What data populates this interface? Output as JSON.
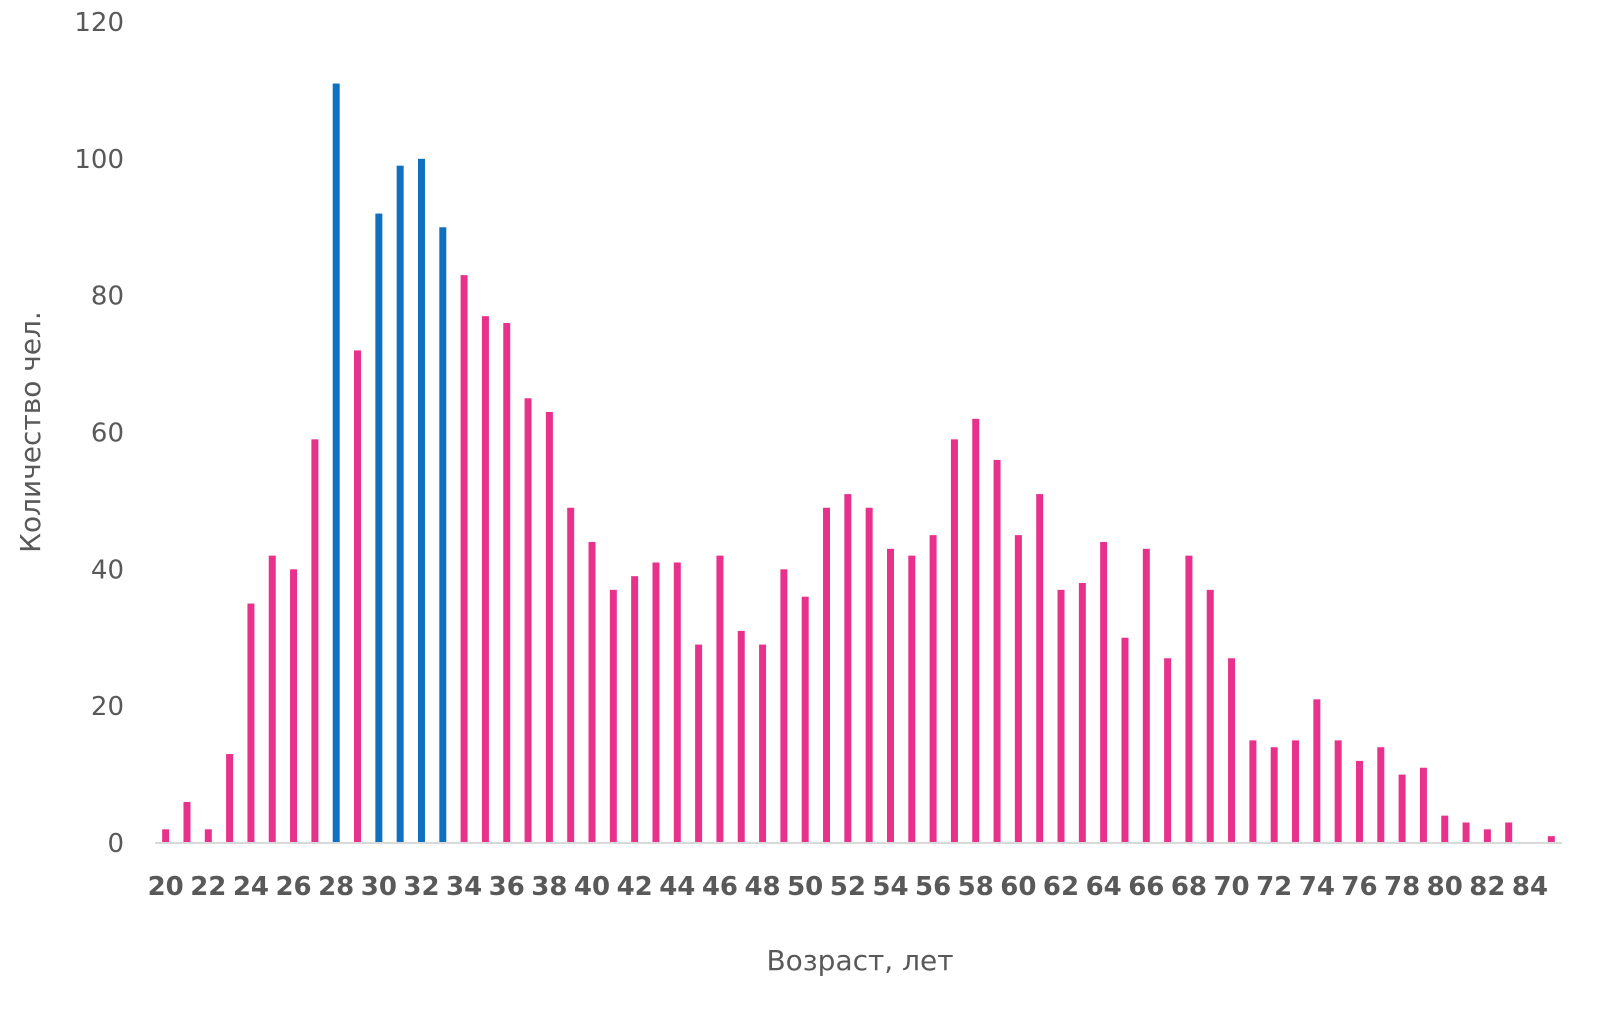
{
  "chart_data": {
    "type": "bar",
    "title": "",
    "xlabel": "Возраст, лет",
    "ylabel": "Количество чел.",
    "ylim": [
      0,
      120
    ],
    "y_ticks": [
      "0",
      "20",
      "40",
      "60",
      "80",
      "100",
      "120"
    ],
    "x_tick_labels": [
      "20",
      "22",
      "24",
      "26",
      "28",
      "30",
      "32",
      "34",
      "36",
      "38",
      "40",
      "42",
      "44",
      "46",
      "48",
      "50",
      "52",
      "54",
      "56",
      "58",
      "60",
      "62",
      "64",
      "66",
      "68",
      "70",
      "72",
      "74",
      "76",
      "78",
      "80",
      "82",
      "84"
    ],
    "grid": false,
    "legend": "none",
    "colors": {
      "default": "#e8318a",
      "highlight": "#1070c0",
      "axis": "#d9d9d9"
    },
    "highlighted_ages": [
      28,
      30,
      31,
      32,
      33
    ],
    "categories": [
      20,
      21,
      22,
      23,
      24,
      25,
      26,
      27,
      28,
      29,
      30,
      31,
      32,
      33,
      34,
      35,
      36,
      37,
      38,
      39,
      40,
      41,
      42,
      43,
      44,
      45,
      46,
      47,
      48,
      49,
      50,
      51,
      52,
      53,
      54,
      55,
      56,
      57,
      58,
      59,
      60,
      61,
      62,
      63,
      64,
      65,
      66,
      67,
      68,
      69,
      70,
      71,
      72,
      73,
      74,
      75,
      76,
      77,
      78,
      79,
      80,
      81,
      82,
      83,
      84,
      85
    ],
    "values": [
      2,
      6,
      2,
      13,
      35,
      42,
      40,
      59,
      111,
      72,
      92,
      99,
      100,
      90,
      83,
      77,
      76,
      65,
      63,
      49,
      44,
      37,
      39,
      41,
      41,
      29,
      42,
      31,
      29,
      40,
      36,
      49,
      51,
      49,
      43,
      42,
      45,
      59,
      62,
      56,
      45,
      51,
      37,
      38,
      44,
      30,
      43,
      27,
      42,
      37,
      27,
      15,
      14,
      15,
      21,
      15,
      12,
      14,
      10,
      11,
      4,
      3,
      2,
      3,
      0,
      1
    ]
  }
}
